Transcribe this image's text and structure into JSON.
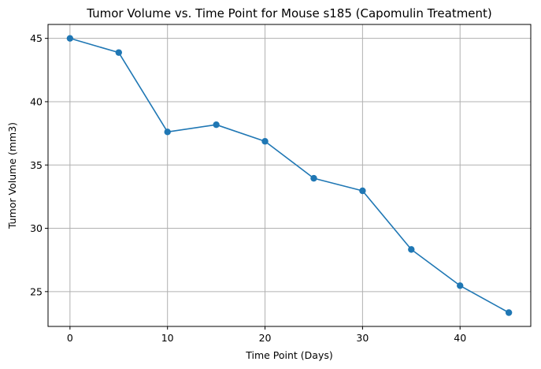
{
  "chart_data": {
    "type": "line",
    "title": "Tumor Volume vs. Time Point for Mouse s185 (Capomulin Treatment)",
    "xlabel": "Time Point (Days)",
    "ylabel": "Tumor Volume (mm3)",
    "x": [
      0,
      5,
      10,
      15,
      20,
      25,
      30,
      35,
      40,
      45
    ],
    "series": [
      {
        "values": [
          45.0,
          43.88,
          37.61,
          38.18,
          36.87,
          33.95,
          32.96,
          28.33,
          25.47,
          23.34
        ],
        "color": "#1f77b4",
        "marker": "circle"
      }
    ],
    "xlim": [
      -2.25,
      47.25
    ],
    "ylim": [
      22.25,
      46.1
    ],
    "xticks": [
      0,
      10,
      20,
      30,
      40
    ],
    "yticks": [
      25,
      30,
      35,
      40,
      45
    ],
    "grid": true,
    "legend": null
  }
}
